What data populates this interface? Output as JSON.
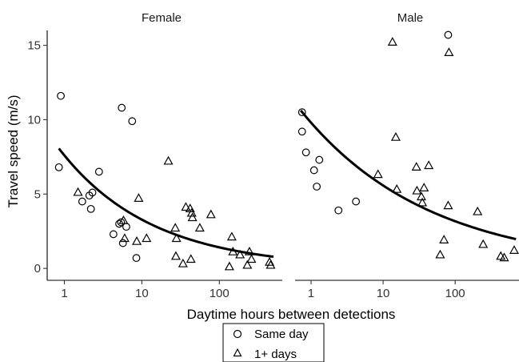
{
  "chart_data": {
    "type": "scatter",
    "x_scale": "log",
    "xlabel": "Daytime hours between detections",
    "ylabel": "Travel speed (m/s)",
    "ylim": [
      -0.8,
      16.0
    ],
    "yticks": [
      0,
      5,
      10,
      15
    ],
    "ytick_labels": [
      "0",
      "5",
      "10",
      "15"
    ],
    "xticks": [
      1,
      10,
      100
    ],
    "xtick_labels": [
      "1",
      "10",
      "100"
    ],
    "grid": false,
    "legend": {
      "placement": "bottom",
      "entries": [
        {
          "label": "Same day",
          "marker": "circle"
        },
        {
          "label": "1+ days",
          "marker": "triangle"
        }
      ]
    },
    "panels": [
      {
        "name": "Female",
        "xlim": [
          0.6,
          650
        ],
        "series": [
          {
            "name": "Same day",
            "marker": "circle",
            "points": [
              [
                0.9,
                11.6
              ],
              [
                0.85,
                6.8
              ],
              [
                1.7,
                4.5
              ],
              [
                2.1,
                4.9
              ],
              [
                2.3,
                5.1
              ],
              [
                2.2,
                4.0
              ],
              [
                2.8,
                6.5
              ],
              [
                4.3,
                2.3
              ],
              [
                5.1,
                3.0
              ],
              [
                5.4,
                3.1
              ],
              [
                5.5,
                10.8
              ],
              [
                5.7,
                1.7
              ],
              [
                6.3,
                2.8
              ],
              [
                7.5,
                9.9
              ],
              [
                8.5,
                0.7
              ]
            ]
          },
          {
            "name": "1+ days",
            "marker": "triangle",
            "points": [
              [
                1.5,
                5.1
              ],
              [
                5.8,
                3.2
              ],
              [
                6.0,
                2.0
              ],
              [
                8.6,
                1.8
              ],
              [
                9.1,
                4.7
              ],
              [
                11.5,
                2.0
              ],
              [
                22.0,
                7.2
              ],
              [
                27.0,
                2.7
              ],
              [
                27.5,
                0.8
              ],
              [
                28.0,
                2.0
              ],
              [
                34.0,
                0.3
              ],
              [
                37.0,
                4.1
              ],
              [
                42.0,
                4.0
              ],
              [
                44.0,
                3.7
              ],
              [
                45.0,
                3.4
              ],
              [
                43.0,
                0.6
              ],
              [
                56.0,
                2.7
              ],
              [
                78.0,
                3.6
              ],
              [
                135.0,
                0.1
              ],
              [
                145.0,
                2.1
              ],
              [
                150.0,
                1.1
              ],
              [
                185.0,
                0.9
              ],
              [
                230.0,
                0.2
              ],
              [
                245.0,
                1.1
              ],
              [
                260.0,
                0.6
              ],
              [
                445.0,
                0.4
              ],
              [
                460.0,
                0.2
              ]
            ]
          }
        ],
        "trend": {
          "x": [
            0.85,
            500
          ],
          "a": 7.6,
          "b": -0.365
        }
      },
      {
        "name": "Male",
        "xlim": [
          0.6,
          770
        ],
        "series": [
          {
            "name": "Same day",
            "marker": "circle",
            "points": [
              [
                0.75,
                10.5
              ],
              [
                0.75,
                9.2
              ],
              [
                0.85,
                7.8
              ],
              [
                1.1,
                6.6
              ],
              [
                1.2,
                5.5
              ],
              [
                1.3,
                7.3
              ],
              [
                2.4,
                3.9
              ],
              [
                4.2,
                4.5
              ],
              [
                80.0,
                15.7
              ]
            ]
          },
          {
            "name": "1+ days",
            "marker": "triangle",
            "points": [
              [
                8.5,
                6.3
              ],
              [
                13.5,
                15.2
              ],
              [
                15.0,
                8.8
              ],
              [
                15.5,
                5.3
              ],
              [
                29.0,
                6.8
              ],
              [
                29.5,
                5.2
              ],
              [
                34.0,
                4.8
              ],
              [
                35.0,
                4.4
              ],
              [
                37.0,
                5.4
              ],
              [
                43.0,
                6.9
              ],
              [
                62.0,
                0.9
              ],
              [
                70.0,
                1.9
              ],
              [
                80.0,
                4.2
              ],
              [
                82.0,
                14.5
              ],
              [
                205.0,
                3.8
              ],
              [
                245.0,
                1.6
              ],
              [
                430.0,
                0.8
              ],
              [
                480.0,
                0.7
              ],
              [
                660.0,
                1.2
              ]
            ]
          }
        ],
        "trend": {
          "x": [
            0.72,
            700
          ],
          "a": 9.8,
          "b": -0.245
        }
      }
    ]
  }
}
